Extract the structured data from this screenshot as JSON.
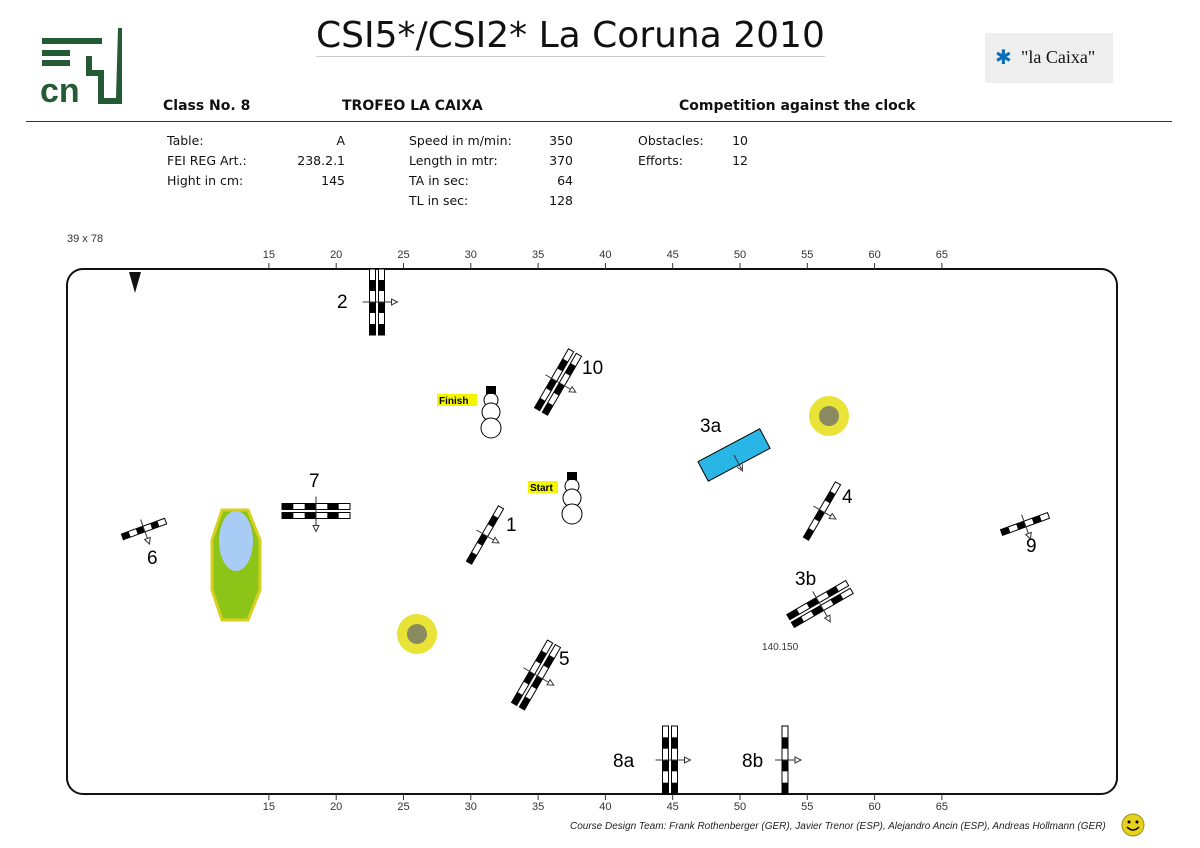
{
  "header": {
    "title": "CSI5*/CSI2* La Coruna 2010",
    "class_no": "Class No.  8",
    "class_name": "TROFEO LA CAIXA",
    "competition": "Competition against the clock",
    "sponsor": "\"la Caixa\"",
    "logo": "cn"
  },
  "info": {
    "col1": [
      {
        "label": "Table:",
        "value": "A"
      },
      {
        "label": "FEI REG Art.:",
        "value": "238.2.1"
      },
      {
        "label": "Hight in cm:",
        "value": "145"
      }
    ],
    "col2": [
      {
        "label": "Speed in m/min:",
        "value": "350"
      },
      {
        "label": "Length in mtr:",
        "value": "370"
      },
      {
        "label": "TA in sec:",
        "value": "64"
      },
      {
        "label": "TL in sec:",
        "value": "128"
      }
    ],
    "col3": [
      {
        "label": "Obstacles:",
        "value": "10"
      },
      {
        "label": "Efforts:",
        "value": "12"
      }
    ]
  },
  "arena": {
    "dimensions": "39 x 78",
    "ticks": [
      "15",
      "20",
      "25",
      "30",
      "35",
      "40",
      "45",
      "50",
      "55",
      "60",
      "65"
    ],
    "obstacles": [
      "1",
      "2",
      "3a",
      "3b",
      "4",
      "5",
      "6",
      "7",
      "8a",
      "8b",
      "9",
      "10"
    ],
    "start_label": "Start",
    "finish_label": "Finish",
    "note": "140.150",
    "colors": {
      "water": "#a8ccf5",
      "liverpool": "#29b6e6",
      "bush": "#e5e020"
    }
  },
  "footer": {
    "text": "Course Design Team:    Frank Rothenberger (GER), Javier Trenor (ESP), Alejandro Ancin (ESP), Andreas Hollmann (GER)"
  }
}
